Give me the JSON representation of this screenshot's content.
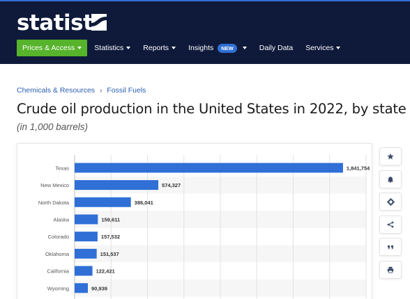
{
  "brand": {
    "logo_text": "statista",
    "accent": "#56b32b",
    "nav_bg": "#0f1a3a",
    "bar_color": "#2f6fd6"
  },
  "nav": {
    "items": [
      {
        "label": "Prices & Access",
        "caret": true
      },
      {
        "label": "Statistics",
        "caret": true
      },
      {
        "label": "Reports",
        "caret": true
      },
      {
        "label": "Insights",
        "caret": true,
        "badge": "NEW"
      },
      {
        "label": "Daily Data",
        "caret": false
      },
      {
        "label": "Services",
        "caret": true
      }
    ]
  },
  "breadcrumb": {
    "parent": "Chemicals & Resources",
    "separator": "›",
    "current": "Fossil Fuels"
  },
  "page": {
    "title": "Crude oil production in the United States in 2022, by state",
    "subtitle": "(in 1,000 barrels)"
  },
  "tools": [
    "star-icon",
    "bell-icon",
    "gear-icon",
    "share-icon",
    "quote-icon",
    "print-icon"
  ],
  "chart_data": {
    "type": "bar",
    "orientation": "horizontal",
    "categories": [
      "Texas",
      "New Mexico",
      "North Dakota",
      "Alaska",
      "Colorado",
      "Oklahoma",
      "California",
      "Wyoming"
    ],
    "values": [
      1841754,
      574327,
      386041,
      159611,
      157532,
      151537,
      122421,
      90939
    ],
    "value_labels": [
      "1,841,754",
      "574,327",
      "386,041",
      "159,611",
      "157,532",
      "151,537",
      "122,421",
      "90,939"
    ],
    "xlim": [
      0,
      2000000
    ],
    "grid": true
  }
}
